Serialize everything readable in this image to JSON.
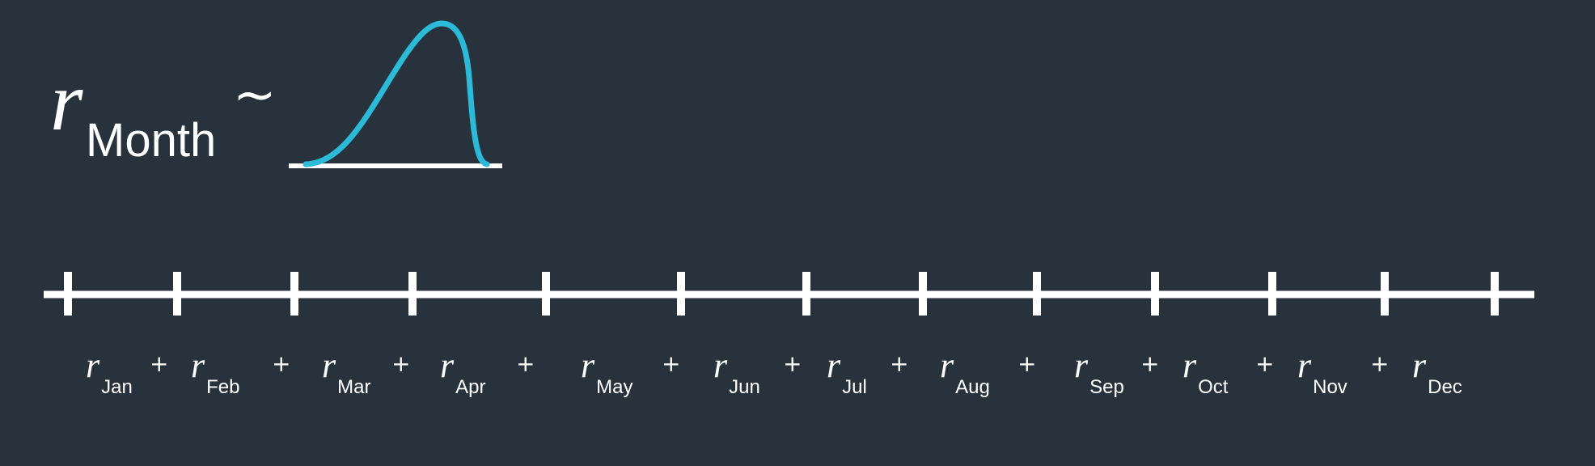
{
  "formula": {
    "variable": "r",
    "subscript": "Month",
    "relation": "~"
  },
  "distribution_icon": "skewed-bell-curve",
  "colors": {
    "background": "#28323c",
    "foreground": "#ffffff",
    "curve": "#2bbbd9"
  },
  "timeline": {
    "tick_count": 13
  },
  "terms": [
    {
      "variable": "r",
      "subscript": "Jan"
    },
    {
      "variable": "r",
      "subscript": "Feb"
    },
    {
      "variable": "r",
      "subscript": "Mar"
    },
    {
      "variable": "r",
      "subscript": "Apr"
    },
    {
      "variable": "r",
      "subscript": "May"
    },
    {
      "variable": "r",
      "subscript": "Jun"
    },
    {
      "variable": "r",
      "subscript": "Jul"
    },
    {
      "variable": "r",
      "subscript": "Aug"
    },
    {
      "variable": "r",
      "subscript": "Sep"
    },
    {
      "variable": "r",
      "subscript": "Oct"
    },
    {
      "variable": "r",
      "subscript": "Nov"
    },
    {
      "variable": "r",
      "subscript": "Dec"
    }
  ],
  "operator": "+"
}
